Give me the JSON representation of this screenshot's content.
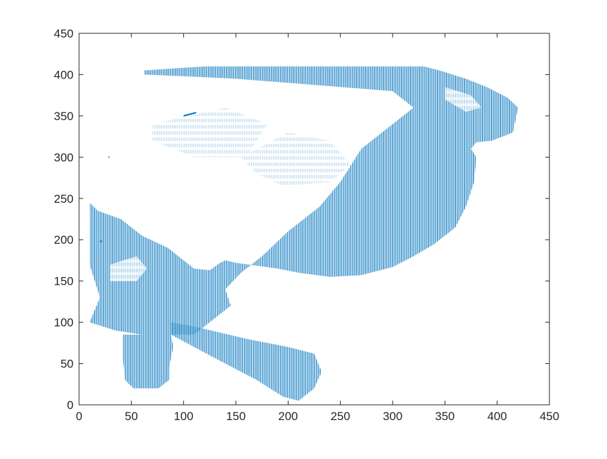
{
  "chart_data": {
    "type": "quiver",
    "title": "",
    "xlabel": "",
    "ylabel": "",
    "xlim": [
      0,
      450
    ],
    "ylim": [
      0,
      450
    ],
    "xticks": [
      0,
      50,
      100,
      150,
      200,
      250,
      300,
      350,
      400,
      450
    ],
    "yticks": [
      0,
      50,
      100,
      150,
      200,
      250,
      300,
      350,
      400,
      450
    ],
    "grid": false,
    "box": true,
    "colors": {
      "vectors": "#0072BD",
      "axes": "#262626",
      "background": "#ffffff"
    },
    "series": [
      {
        "color": "#0072BD",
        "regions": [
          {
            "part": "upper-body",
            "outline": [
              [
                62,
                405
              ],
              [
                120,
                410
              ],
              [
                330,
                410
              ],
              [
                345,
                405
              ],
              [
                370,
                395
              ],
              [
                390,
                385
              ],
              [
                410,
                372
              ],
              [
                420,
                360
              ],
              [
                415,
                330
              ],
              [
                395,
                320
              ],
              [
                380,
                318
              ],
              [
                375,
                310
              ],
              [
                380,
                300
              ],
              [
                378,
                270
              ],
              [
                370,
                240
              ],
              [
                360,
                215
              ],
              [
                340,
                195
              ],
              [
                320,
                180
              ],
              [
                300,
                167
              ],
              [
                270,
                157
              ],
              [
                240,
                155
              ],
              [
                210,
                160
              ],
              [
                190,
                165
              ],
              [
                150,
                172
              ],
              [
                140,
                175
              ],
              [
                135,
                172
              ],
              [
                125,
                163
              ],
              [
                110,
                165
              ],
              [
                85,
                190
              ],
              [
                60,
                205
              ],
              [
                40,
                225
              ],
              [
                18,
                235
              ],
              [
                10,
                245
              ],
              [
                10,
                170
              ],
              [
                15,
                150
              ],
              [
                20,
                130
              ],
              [
                10,
                100
              ],
              [
                35,
                90
              ],
              [
                60,
                85
              ],
              [
                110,
                85
              ],
              [
                125,
                100
              ],
              [
                145,
                120
              ],
              [
                140,
                140
              ],
              [
                155,
                160
              ],
              [
                175,
                180
              ],
              [
                200,
                210
              ],
              [
                230,
                240
              ],
              [
                250,
                270
              ],
              [
                270,
                310
              ],
              [
                300,
                340
              ],
              [
                320,
                360
              ],
              [
                300,
                380
              ],
              [
                250,
                385
              ],
              [
                200,
                390
              ],
              [
                150,
                395
              ],
              [
                100,
                398
              ],
              [
                62,
                400
              ]
            ]
          },
          {
            "part": "lower-arm",
            "outline": [
              [
                88,
                100
              ],
              [
                110,
                95
              ],
              [
                160,
                80
              ],
              [
                200,
                70
              ],
              [
                225,
                62
              ],
              [
                232,
                40
              ],
              [
                225,
                20
              ],
              [
                210,
                5
              ],
              [
                195,
                10
              ],
              [
                170,
                30
              ],
              [
                140,
                50
              ],
              [
                110,
                70
              ],
              [
                88,
                85
              ]
            ]
          },
          {
            "part": "left-lobe",
            "outline": [
              [
                42,
                85
              ],
              [
                88,
                85
              ],
              [
                90,
                70
              ],
              [
                86,
                45
              ],
              [
                86,
                30
              ],
              [
                76,
                20
              ],
              [
                52,
                20
              ],
              [
                44,
                30
              ],
              [
                42,
                55
              ]
            ]
          }
        ],
        "highlights": [
          {
            "part": "upper-right-spot",
            "outline": [
              [
                350,
                385
              ],
              [
                375,
                375
              ],
              [
                385,
                360
              ],
              [
                370,
                355
              ],
              [
                350,
                370
              ]
            ]
          },
          {
            "part": "center-gap",
            "outline": [
              [
                155,
                300
              ],
              [
                200,
                330
              ],
              [
                240,
                320
              ],
              [
                260,
                290
              ],
              [
                240,
                270
              ],
              [
                195,
                265
              ],
              [
                170,
                280
              ]
            ]
          },
          {
            "part": "left-gap",
            "outline": [
              [
                30,
                170
              ],
              [
                55,
                180
              ],
              [
                65,
                165
              ],
              [
                55,
                150
              ],
              [
                30,
                150
              ]
            ]
          },
          {
            "part": "upper-left-gap",
            "outline": [
              [
                70,
                340
              ],
              [
                140,
                360
              ],
              [
                180,
                340
              ],
              [
                160,
                300
              ],
              [
                110,
                300
              ],
              [
                70,
                320
              ]
            ]
          }
        ],
        "stray_marks": [
          {
            "x1": 100,
            "y1": 350,
            "x2": 112,
            "y2": 354
          },
          {
            "x1": 28,
            "y1": 300,
            "x2": 29,
            "y2": 300
          },
          {
            "x1": 20,
            "y1": 198,
            "x2": 22,
            "y2": 198
          }
        ]
      }
    ]
  }
}
